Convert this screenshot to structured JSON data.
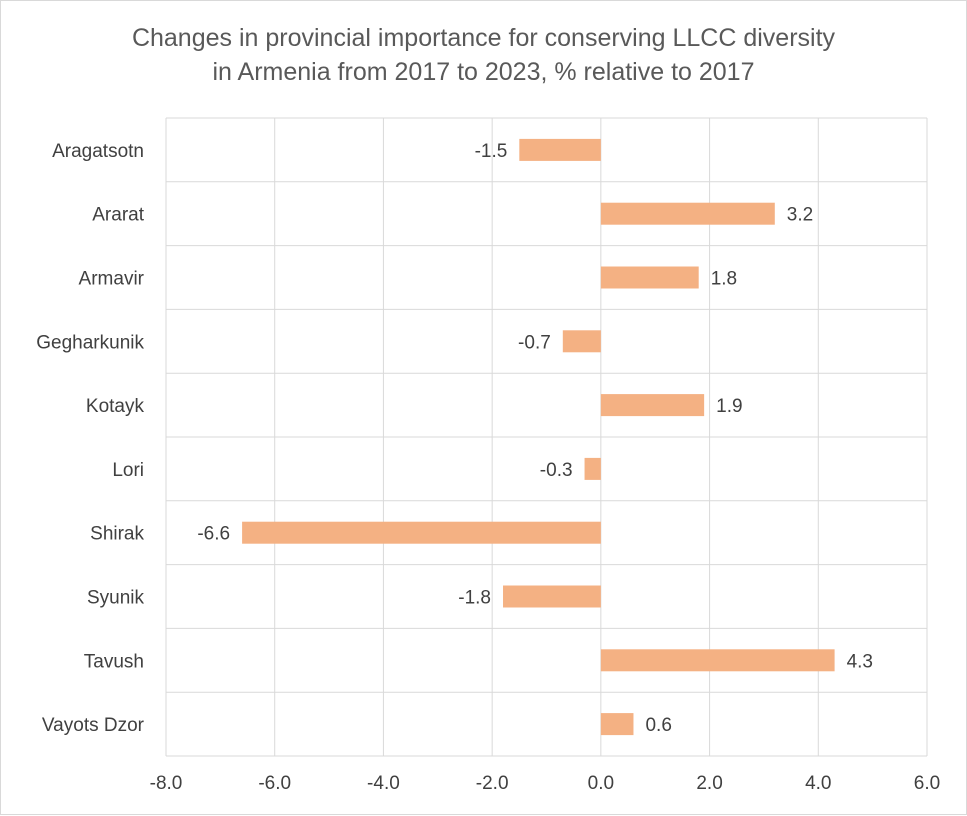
{
  "chart_data": {
    "type": "bar",
    "orientation": "horizontal",
    "title_lines": [
      "Changes in provincial importance for conserving LLCC diversity",
      "in Armenia from 2017 to 2023, % relative to 2017"
    ],
    "categories": [
      "Aragatsotn",
      "Ararat",
      "Armavir",
      "Gegharkunik",
      "Kotayk",
      "Lori",
      "Shirak",
      "Syunik",
      "Tavush",
      "Vayots Dzor"
    ],
    "values": [
      -1.5,
      3.2,
      1.8,
      -0.7,
      1.9,
      -0.3,
      -6.6,
      -1.8,
      4.3,
      0.6
    ],
    "data_labels": [
      "-1.5",
      "3.2",
      "1.8",
      "-0.7",
      "1.9",
      "-0.3",
      "-6.6",
      "-1.8",
      "4.3",
      "0.6"
    ],
    "xlim": [
      -8.0,
      6.0
    ],
    "x_ticks": [
      -8.0,
      -6.0,
      -4.0,
      -2.0,
      0.0,
      2.0,
      4.0,
      6.0
    ],
    "x_tick_labels": [
      "-8.0",
      "-6.0",
      "-4.0",
      "-2.0",
      "0.0",
      "2.0",
      "4.0",
      "6.0"
    ],
    "grid": true,
    "legend": "none",
    "bar_color": "#f4b183",
    "grid_color": "#d9d9d9",
    "text_color": "#404040",
    "title_color": "#595959"
  }
}
